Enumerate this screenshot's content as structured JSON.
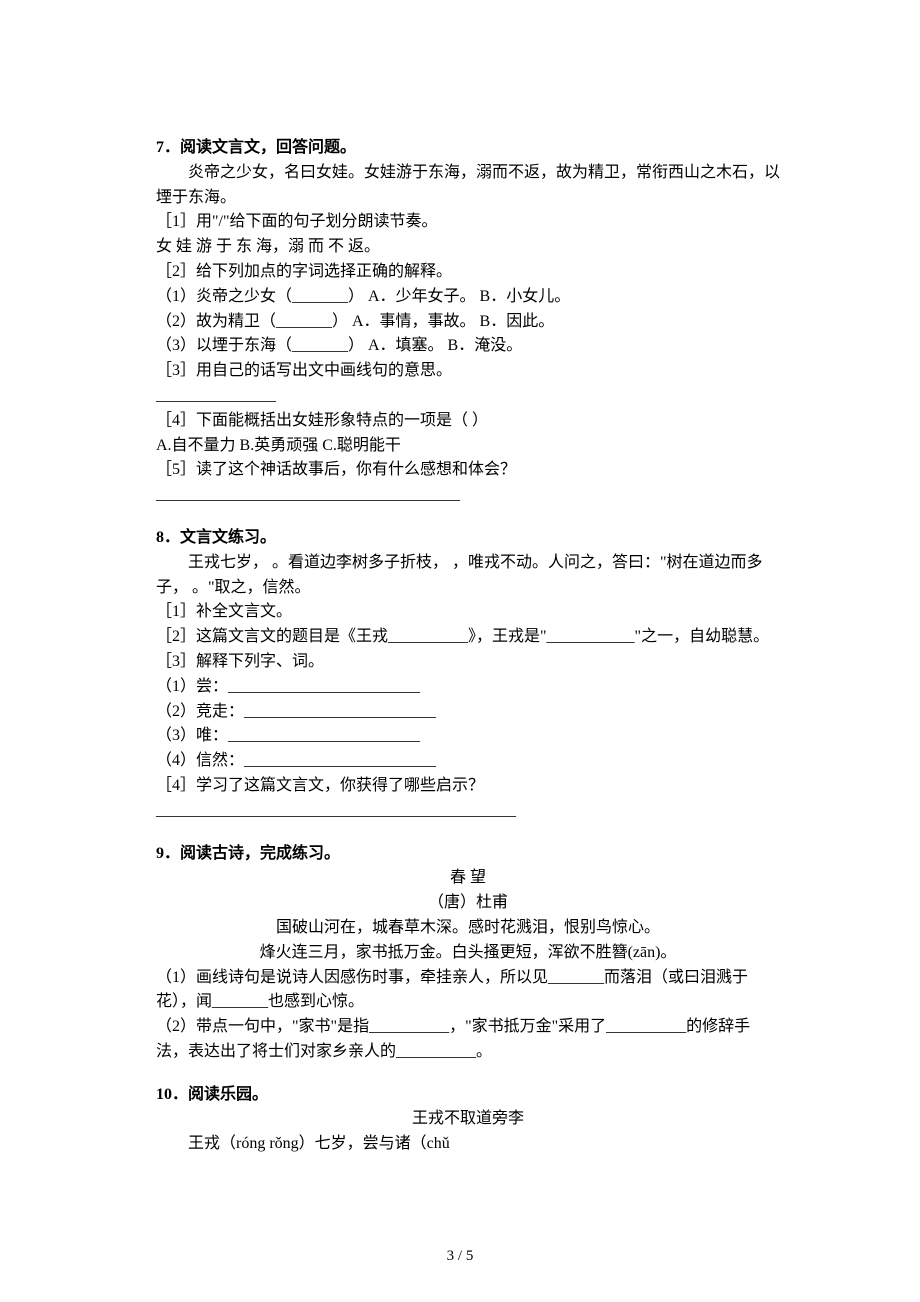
{
  "q7": {
    "title": "7．阅读文言文，回答问题。",
    "passage1": "炎帝之少女，名曰女娃。女娃游于东海，溺而不返，故为精卫，常衔西山之木石，以堙于东海。",
    "sub1": "［1］用\"/\"给下面的句子划分朗读节奏。",
    "sub1_line": "女  娃  游  于  东  海，溺  而  不  返。",
    "sub2": "［2］给下列加点的字词选择正确的解释。",
    "sub2_1": "（1）炎帝之少女（_______）   A．少年女子。  B．小女儿。",
    "sub2_2": "（2）故为精卫（_______）    A．事情，事故。 B．因此。",
    "sub2_3": "（3）以堙于东海（_______）   A．填塞。  B．淹没。",
    "sub3": "［3］用自己的话写出文中画线句的意思。",
    "sub3_blank": "_______________",
    "sub4": "［4］下面能概括出女娃形象特点的一项是（    ）",
    "sub4_opts": "A.自不量力 B.英勇顽强 C.聪明能干",
    "sub5": "［5］读了这个神话故事后，你有什么感想和体会？",
    "sub5_blank": "______________________________________"
  },
  "q8": {
    "title": "8．文言文练习。",
    "passage": "王戎七岁，   。看道边李树多子折枝，   ，唯戎不动。人问之，答曰：\"树在道边而多子，   。\"取之，信然。",
    "sub1": "［1］补全文言文。",
    "sub2": "［2］这篇文言文的题目是《王戎__________》，王戎是\"___________\"之一，自幼聪慧。",
    "sub3": "［3］解释下列字、词。",
    "sub3_1": "（1）尝：________________________",
    "sub3_2": "（2）竞走：________________________",
    "sub3_3": "（3）唯：________________________",
    "sub3_4": "（4）信然：________________________",
    "sub4": "［4］学习了这篇文言文，你获得了哪些启示？",
    "sub4_blank": "_____________________________________________"
  },
  "q9": {
    "title": "9．阅读古诗，完成练习。",
    "poem_title": "春    望",
    "poem_author": "（唐）杜甫",
    "poem_l1": "国破山河在，城春草木深。感时花溅泪，恨别鸟惊心。",
    "poem_l2": "烽火连三月，家书抵万金。白头搔更短，浑欲不胜簪(zān)。",
    "sub1": "（1）画线诗句是说诗人因感伤时事，牵挂亲人，所以见_______而落泪（或曰泪溅于花），闻_______也感到心惊。",
    "sub2": "（2）带点一句中，\"家书\"是指__________，\"家书抵万金\"采用了__________的修辞手法，表达出了将士们对家乡亲人的__________。"
  },
  "q10": {
    "title": "10．阅读乐园。",
    "subtitle": "王戎不取道旁李",
    "passage": "王戎（róng  rǒng）七岁，尝与诸（chǔ"
  },
  "footer": "3 / 5"
}
